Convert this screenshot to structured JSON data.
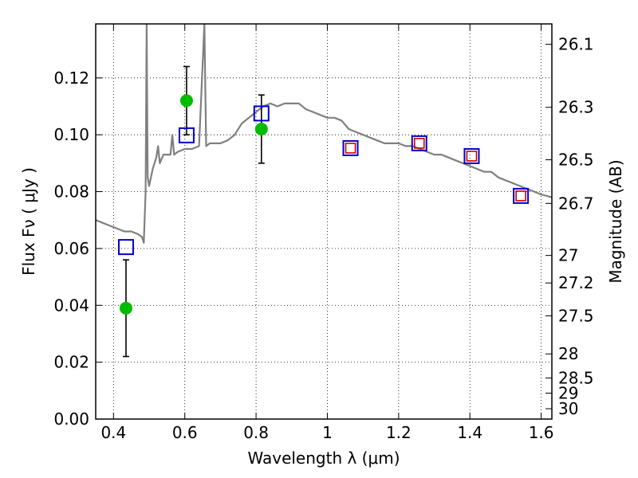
{
  "chart_data": {
    "type": "scatter",
    "xlabel": "Wavelength  λ (μm)",
    "ylabel": "Flux  Fν  ( μJy )",
    "ylabel_right": "Magnitude (AB)",
    "xlim": [
      0.35,
      1.63
    ],
    "ylim": [
      0.0,
      0.139
    ],
    "grid": true,
    "x_ticks": [
      0.4,
      0.6,
      0.8,
      1.0,
      1.2,
      1.4,
      1.6
    ],
    "x_tick_labels": [
      "0.4",
      "0.6",
      "0.8",
      "1",
      "1.2",
      "1.4",
      "1.6"
    ],
    "y_ticks": [
      0.0,
      0.02,
      0.04,
      0.06,
      0.08,
      0.1,
      0.12
    ],
    "y_tick_labels": [
      "0.00",
      "0.02",
      "0.04",
      "0.06",
      "0.08",
      "0.10",
      "0.12"
    ],
    "right_ticks": [
      26.1,
      26.3,
      26.5,
      26.7,
      27.0,
      27.2,
      27.5,
      28.0,
      28.5,
      29.0,
      30.0
    ],
    "right_tick_labels": [
      "26.1",
      "26.3",
      "26.5",
      "26.7",
      "27",
      "27.2",
      "27.5",
      "28",
      "28.5",
      "29",
      "30"
    ],
    "series": [
      {
        "kind": "line",
        "color": "#808080",
        "x": [
          0.35,
          0.37,
          0.39,
          0.41,
          0.43,
          0.45,
          0.47,
          0.48,
          0.485,
          0.49,
          0.493,
          0.496,
          0.5,
          0.51,
          0.52,
          0.525,
          0.53,
          0.54,
          0.55,
          0.56,
          0.565,
          0.57,
          0.58,
          0.6,
          0.62,
          0.64,
          0.655,
          0.66,
          0.67,
          0.68,
          0.7,
          0.72,
          0.74,
          0.76,
          0.78,
          0.8,
          0.82,
          0.84,
          0.86,
          0.88,
          0.9,
          0.92,
          0.94,
          0.96,
          0.98,
          1.0,
          1.02,
          1.04,
          1.06,
          1.08,
          1.1,
          1.12,
          1.14,
          1.16,
          1.18,
          1.2,
          1.22,
          1.24,
          1.26,
          1.28,
          1.3,
          1.32,
          1.34,
          1.36,
          1.38,
          1.4,
          1.42,
          1.44,
          1.46,
          1.48,
          1.5,
          1.52,
          1.54,
          1.56,
          1.58,
          1.6,
          1.63
        ],
        "y": [
          0.07,
          0.069,
          0.068,
          0.067,
          0.066,
          0.066,
          0.065,
          0.064,
          0.062,
          0.08,
          0.139,
          0.085,
          0.082,
          0.088,
          0.092,
          0.096,
          0.09,
          0.093,
          0.093,
          0.093,
          0.1,
          0.093,
          0.094,
          0.095,
          0.095,
          0.096,
          0.139,
          0.096,
          0.097,
          0.097,
          0.097,
          0.098,
          0.1,
          0.104,
          0.106,
          0.108,
          0.11,
          0.111,
          0.11,
          0.111,
          0.111,
          0.111,
          0.109,
          0.108,
          0.107,
          0.106,
          0.106,
          0.105,
          0.102,
          0.101,
          0.1,
          0.099,
          0.098,
          0.097,
          0.097,
          0.097,
          0.096,
          0.096,
          0.095,
          0.094,
          0.093,
          0.093,
          0.092,
          0.091,
          0.09,
          0.089,
          0.088,
          0.087,
          0.087,
          0.085,
          0.084,
          0.083,
          0.082,
          0.081,
          0.08,
          0.079,
          0.078
        ]
      },
      {
        "kind": "errorbar",
        "color": "#00bb00",
        "x": [
          0.435,
          0.605,
          0.815
        ],
        "y": [
          0.039,
          0.112,
          0.102
        ],
        "yerr_low": [
          0.017,
          0.012,
          0.012
        ],
        "yerr_high": [
          0.017,
          0.012,
          0.012
        ]
      },
      {
        "kind": "square",
        "color": "#0000cc",
        "x": [
          0.435,
          0.605,
          0.815,
          1.065,
          1.258,
          1.405,
          1.543
        ],
        "y": [
          0.0605,
          0.0998,
          0.1075,
          0.0953,
          0.097,
          0.0925,
          0.0785
        ]
      },
      {
        "kind": "square",
        "color": "#cc0000",
        "x": [
          1.065,
          1.258,
          1.405,
          1.543
        ],
        "y": [
          0.0953,
          0.097,
          0.0925,
          0.0785
        ]
      }
    ]
  }
}
